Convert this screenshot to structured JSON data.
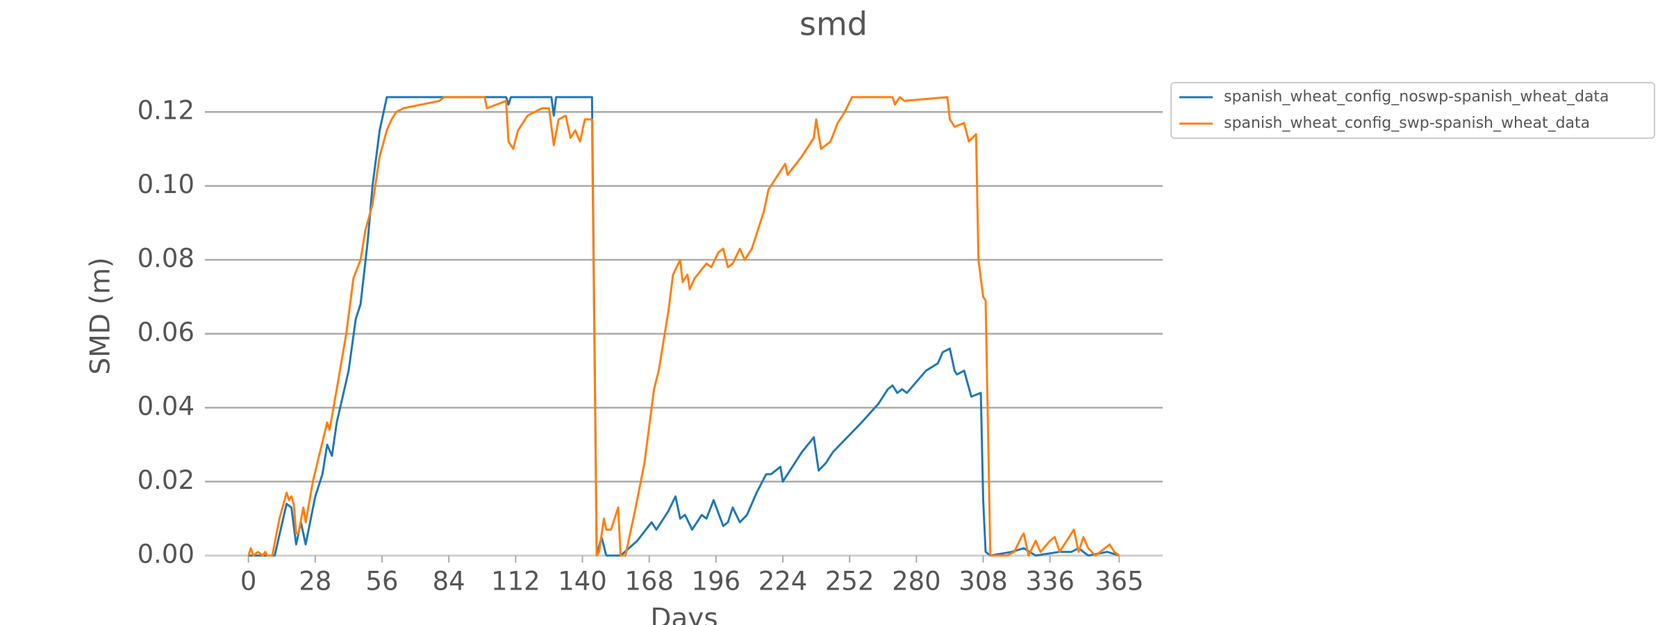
{
  "chart_data": {
    "type": "line",
    "title": "smd",
    "x_label": "Days",
    "y_label": "SMD (m)",
    "xlim": [
      -18.25,
      383.25
    ],
    "xticks": [
      0,
      28,
      56,
      84,
      112,
      140,
      168,
      196,
      224,
      252,
      280,
      308,
      336,
      365
    ],
    "ylim": [
      0,
      0.13
    ],
    "yticks": [
      {
        "value": 0,
        "label": "0.00"
      },
      {
        "value": 0.02,
        "label": "0.02"
      },
      {
        "value": 0.04,
        "label": "0.04"
      },
      {
        "value": 0.06,
        "label": "0.06"
      },
      {
        "value": 0.08,
        "label": "0.08"
      },
      {
        "value": 0.1,
        "label": "0.10"
      },
      {
        "value": 0.12,
        "label": "0.12"
      }
    ],
    "grid": true,
    "legend": "outside upper right",
    "series": [
      {
        "name": "spanish_wheat_config_noswp-spanish_wheat_data",
        "color": "#1f77b4",
        "x": [
          0,
          11,
          16,
          18,
          20,
          22,
          24,
          28,
          31,
          33,
          35,
          37,
          42,
          45,
          47,
          50,
          52,
          55,
          58,
          108,
          109,
          110,
          127,
          128,
          129,
          144,
          146,
          148,
          150,
          156,
          163,
          169,
          171,
          176,
          179,
          181,
          183,
          186,
          190,
          192,
          195,
          199,
          201,
          203,
          206,
          209,
          213,
          217,
          219,
          223,
          224,
          228,
          232,
          237,
          239,
          242,
          245,
          248,
          257,
          264,
          268,
          270,
          272,
          274,
          276,
          280,
          284,
          289,
          291,
          294,
          296,
          297,
          300,
          303,
          307,
          308,
          309,
          311,
          320,
          325,
          330,
          340,
          345,
          348,
          352,
          360,
          365
        ],
        "values": [
          0,
          0,
          0.014,
          0.013,
          0.003,
          0.009,
          0.003,
          0.016,
          0.022,
          0.03,
          0.027,
          0.036,
          0.05,
          0.064,
          0.068,
          0.085,
          0.1,
          0.115,
          0.124,
          0.124,
          0.122,
          0.124,
          0.124,
          0.119,
          0.124,
          0.124,
          0,
          0.005,
          0,
          0,
          0.004,
          0.009,
          0.007,
          0.012,
          0.016,
          0.01,
          0.011,
          0.007,
          0.011,
          0.01,
          0.015,
          0.008,
          0.009,
          0.013,
          0.009,
          0.011,
          0.017,
          0.022,
          0.022,
          0.024,
          0.02,
          0.024,
          0.028,
          0.032,
          0.023,
          0.025,
          0.028,
          0.03,
          0.036,
          0.041,
          0.045,
          0.046,
          0.044,
          0.045,
          0.044,
          0.047,
          0.05,
          0.052,
          0.055,
          0.056,
          0.05,
          0.049,
          0.05,
          0.043,
          0.044,
          0.015,
          0.001,
          0,
          0.001,
          0.002,
          0,
          0.001,
          0.001,
          0.002,
          0,
          0.001,
          0
        ]
      },
      {
        "name": "spanish_wheat_config_swp-spanish_wheat_data",
        "color": "#ff7f0e",
        "x": [
          0,
          1,
          2,
          4,
          6,
          7,
          8,
          10,
          13,
          16,
          17,
          18,
          19,
          20,
          21,
          23,
          24,
          27,
          30,
          33,
          34,
          37,
          41,
          44,
          47,
          49,
          52,
          55,
          58,
          60,
          62,
          65,
          80,
          82,
          99,
          100,
          108,
          109,
          111,
          113,
          117,
          123,
          126,
          128,
          130,
          133,
          135,
          137,
          139,
          141,
          144,
          146,
          147,
          149,
          150,
          152,
          155,
          156,
          158,
          162,
          166,
          170,
          172,
          176,
          178,
          181,
          182,
          184,
          185,
          187,
          192,
          194,
          197,
          199,
          201,
          203,
          206,
          208,
          211,
          216,
          218,
          221,
          225,
          226,
          232,
          237,
          238,
          240,
          244,
          247,
          250,
          253,
          270,
          271,
          273,
          275,
          293,
          294,
          296,
          300,
          302,
          305,
          306,
          308,
          309,
          311,
          318,
          321,
          324,
          325,
          327,
          330,
          332,
          336,
          338,
          340,
          344,
          346,
          348,
          350,
          352,
          355,
          359,
          361,
          363,
          365
        ],
        "values": [
          0,
          0.002,
          0,
          0.001,
          0,
          0.001,
          0,
          0,
          0.01,
          0.017,
          0.015,
          0.016,
          0.014,
          0.006,
          0.006,
          0.013,
          0.009,
          0.02,
          0.028,
          0.036,
          0.034,
          0.045,
          0.06,
          0.075,
          0.08,
          0.088,
          0.095,
          0.108,
          0.115,
          0.118,
          0.12,
          0.121,
          0.123,
          0.124,
          0.124,
          0.121,
          0.123,
          0.112,
          0.11,
          0.115,
          0.119,
          0.121,
          0.121,
          0.111,
          0.118,
          0.119,
          0.113,
          0.115,
          0.112,
          0.118,
          0.118,
          0,
          0.001,
          0.01,
          0.007,
          0.007,
          0.013,
          0,
          0,
          0.012,
          0.025,
          0.045,
          0.05,
          0.066,
          0.076,
          0.08,
          0.074,
          0.076,
          0.072,
          0.075,
          0.079,
          0.078,
          0.082,
          0.083,
          0.078,
          0.079,
          0.083,
          0.08,
          0.083,
          0.093,
          0.099,
          0.102,
          0.106,
          0.103,
          0.108,
          0.113,
          0.118,
          0.11,
          0.112,
          0.117,
          0.12,
          0.124,
          0.124,
          0.122,
          0.124,
          0.123,
          0.124,
          0.118,
          0.116,
          0.117,
          0.112,
          0.114,
          0.08,
          0.07,
          0.069,
          0,
          0,
          0.001,
          0.005,
          0.006,
          0,
          0.004,
          0.001,
          0.004,
          0.005,
          0.001,
          0.005,
          0.007,
          0.001,
          0.005,
          0.002,
          0,
          0.002,
          0.003,
          0.001,
          0
        ]
      }
    ]
  }
}
